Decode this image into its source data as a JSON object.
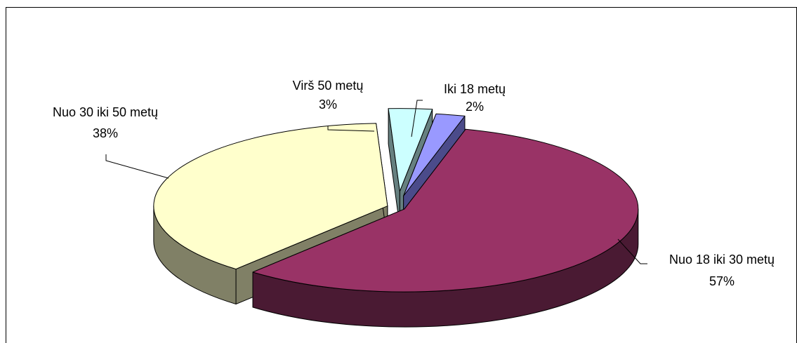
{
  "chart_data": {
    "type": "pie",
    "title": "",
    "categories": [
      "Iki 18 metų",
      "Nuo 18 iki 30 metų",
      "Nuo 30 iki 50 metų",
      "Virš 50 metų"
    ],
    "values": [
      2,
      57,
      38,
      3
    ],
    "value_labels": [
      "2%",
      "57%",
      "38%",
      "3%"
    ],
    "legend": "none",
    "style": "3d-exploded",
    "colors": {
      "Iki 18 metų": {
        "top": "#9999ff",
        "side": "#4b4b8a"
      },
      "Nuo 18 iki 30 metų": {
        "top": "#993366",
        "side": "#4a1a33"
      },
      "Nuo 30 iki 50 metų": {
        "top": "#ffffcc",
        "side": "#808066"
      },
      "Virš 50 metų": {
        "top": "#ccffff",
        "side": "#668080"
      }
    }
  }
}
